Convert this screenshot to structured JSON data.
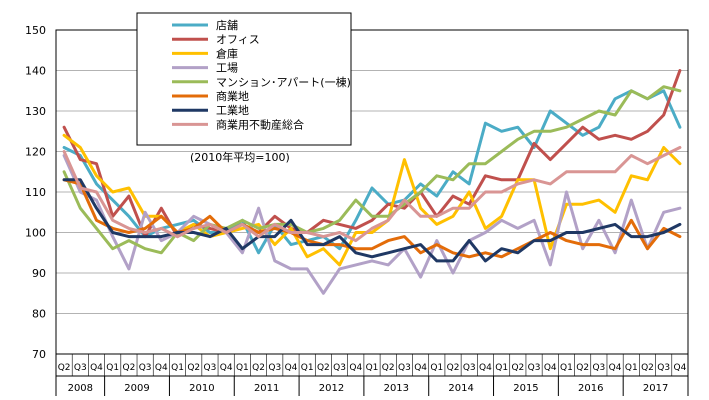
{
  "chart_data": {
    "type": "line",
    "note": "(2010年平均=100)",
    "ylim": [
      70,
      150
    ],
    "yticks": [
      70,
      80,
      90,
      100,
      110,
      120,
      130,
      140,
      150
    ],
    "quarter_labels": [
      "Q2",
      "Q3",
      "Q4",
      "Q1",
      "Q2",
      "Q3",
      "Q4",
      "Q1",
      "Q2",
      "Q3",
      "Q4",
      "Q1",
      "Q2",
      "Q3",
      "Q4",
      "Q1",
      "Q2",
      "Q3",
      "Q4",
      "Q1",
      "Q2",
      "Q3",
      "Q4",
      "Q1",
      "Q2",
      "Q3",
      "Q4",
      "Q1",
      "Q2",
      "Q3",
      "Q4",
      "Q1",
      "Q2",
      "Q3",
      "Q4",
      "Q1",
      "Q2",
      "Q3",
      "Q4"
    ],
    "years": [
      {
        "label": "2008",
        "start": 0,
        "count": 3
      },
      {
        "label": "2009",
        "start": 3,
        "count": 4
      },
      {
        "label": "2010",
        "start": 7,
        "count": 4
      },
      {
        "label": "2011",
        "start": 11,
        "count": 4
      },
      {
        "label": "2012",
        "start": 15,
        "count": 4
      },
      {
        "label": "2013",
        "start": 19,
        "count": 4
      },
      {
        "label": "2014",
        "start": 23,
        "count": 4
      },
      {
        "label": "2015",
        "start": 27,
        "count": 4
      },
      {
        "label": "2016",
        "start": 31,
        "count": 4
      },
      {
        "label": "2017",
        "start": 35,
        "count": 4
      }
    ],
    "series": [
      {
        "name": "店舗",
        "color": "#4bacc6",
        "values": [
          121,
          119,
          112,
          108,
          104,
          99,
          101,
          102,
          103,
          100,
          100,
          103,
          95,
          102,
          97,
          98,
          99,
          96,
          103,
          111,
          107,
          108,
          112,
          109,
          115,
          112,
          127,
          125,
          126,
          121,
          130,
          127,
          124,
          126,
          133,
          135,
          133,
          135,
          126
        ]
      },
      {
        "name": "オフィス",
        "color": "#c0504d",
        "values": [
          126,
          118,
          117,
          104,
          109,
          99,
          106,
          99,
          102,
          101,
          100,
          102,
          100,
          104,
          101,
          100,
          103,
          102,
          101,
          103,
          107,
          106,
          110,
          104,
          109,
          107,
          114,
          113,
          113,
          122,
          118,
          122,
          126,
          123,
          124,
          123,
          125,
          129,
          140
        ]
      },
      {
        "name": "倉庫",
        "color": "#ffc000",
        "values": [
          124,
          121,
          114,
          110,
          111,
          104,
          104,
          100,
          102,
          99,
          100,
          101,
          102,
          97,
          101,
          94,
          96,
          92,
          100,
          100,
          103,
          118,
          106,
          102,
          104,
          110,
          101,
          104,
          113,
          113,
          96,
          107,
          107,
          108,
          105,
          114,
          113,
          121,
          117
        ]
      },
      {
        "name": "工場",
        "color": "#b2a1c7",
        "values": [
          119,
          110,
          108,
          99,
          91,
          105,
          98,
          100,
          104,
          102,
          100,
          95,
          106,
          93,
          91,
          91,
          85,
          91,
          92,
          93,
          92,
          96,
          89,
          98,
          90,
          98,
          100,
          103,
          101,
          103,
          92,
          110,
          96,
          103,
          95,
          108,
          96,
          105,
          106
        ]
      },
      {
        "name": "マンション･アパート(一棟)",
        "color": "#9bbb59",
        "values": [
          115,
          106,
          101,
          96,
          98,
          96,
          95,
          100,
          98,
          102,
          101,
          103,
          101,
          102,
          102,
          100,
          101,
          103,
          108,
          104,
          104,
          107,
          110,
          114,
          113,
          117,
          117,
          120,
          123,
          125,
          125,
          126,
          128,
          130,
          129,
          135,
          133,
          136,
          135
        ]
      },
      {
        "name": "商業地",
        "color": "#e36c09",
        "values": [
          113,
          112,
          103,
          101,
          100,
          101,
          104,
          100,
          101,
          104,
          100,
          102,
          100,
          101,
          100,
          98,
          97,
          97,
          96,
          96,
          98,
          99,
          95,
          97,
          95,
          94,
          95,
          94,
          96,
          98,
          100,
          98,
          97,
          97,
          96,
          103,
          96,
          101,
          99
        ]
      },
      {
        "name": "工業地",
        "color": "#1f3864",
        "values": [
          113,
          113,
          106,
          100,
          99,
          99,
          99,
          100,
          100,
          99,
          101,
          96,
          99,
          99,
          103,
          97,
          97,
          99,
          95,
          94,
          95,
          96,
          97,
          93,
          93,
          98,
          93,
          96,
          95,
          98,
          98,
          100,
          100,
          101,
          102,
          99,
          99,
          100,
          102
        ]
      },
      {
        "name": "商業用不動産総合",
        "color": "#d99594",
        "values": [
          120,
          111,
          110,
          103,
          101,
          100,
          101,
          99,
          101,
          102,
          100,
          102,
          99,
          102,
          100,
          100,
          99,
          100,
          98,
          101,
          103,
          108,
          104,
          104,
          106,
          106,
          110,
          110,
          112,
          113,
          112,
          115,
          115,
          115,
          115,
          119,
          117,
          119,
          121
        ]
      }
    ]
  }
}
